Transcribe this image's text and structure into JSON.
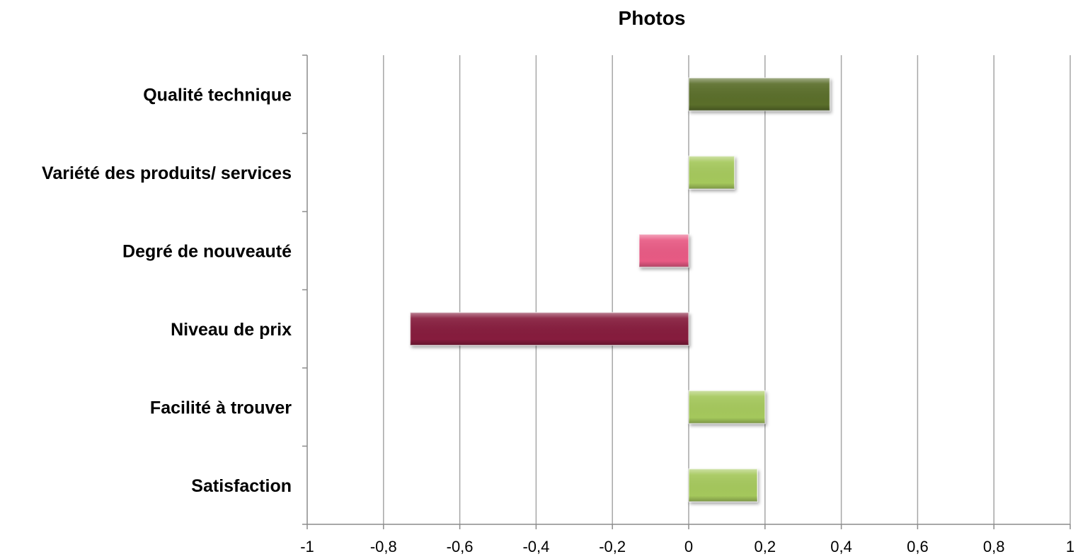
{
  "chart_data": {
    "type": "bar",
    "orientation": "horizontal",
    "title": "Photos",
    "xlabel": "",
    "ylabel": "",
    "categories": [
      "Qualité technique",
      "Variété des produits/ services",
      "Degré de nouveauté",
      "Niveau de prix",
      "Facilité à trouver",
      "Satisfaction"
    ],
    "values": [
      0.37,
      0.12,
      -0.13,
      -0.73,
      0.2,
      0.18
    ],
    "bar_colors": [
      "#5a6e2c",
      "#a5c85c",
      "#e85a84",
      "#861f3c",
      "#a5c85c",
      "#a5c85c"
    ],
    "xlim": [
      -1,
      1
    ],
    "x_ticks": [
      -1,
      -0.8,
      -0.6,
      -0.4,
      -0.2,
      0,
      0.2,
      0.4,
      0.6,
      0.8,
      1
    ],
    "x_tick_labels": [
      "-1",
      "-0,8",
      "-0,6",
      "-0,4",
      "-0,2",
      "0",
      "0,2",
      "0,4",
      "0,6",
      "0,8",
      "1"
    ],
    "grid": true,
    "legend": "none"
  }
}
